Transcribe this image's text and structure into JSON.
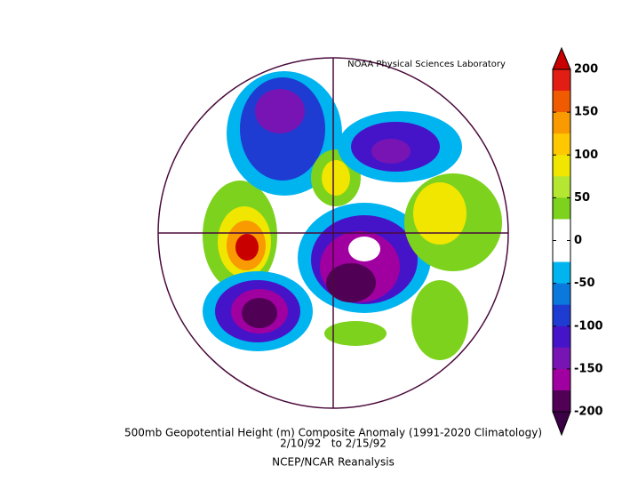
{
  "credit": "NOAA Physical Sciences Laboratory",
  "title": "500mb Geopotential Height (m) Composite Anomaly (1991-2020 Climatology)",
  "dates": "2/10/92   to 2/15/92",
  "source": "NCEP/NCAR Reanalysis",
  "colorbar": {
    "ticks": [
      200,
      150,
      100,
      50,
      0,
      -50,
      -100,
      -150,
      -200
    ],
    "over": "#c80000",
    "under": "#3c0046",
    "colors": [
      "#e21e14",
      "#f05a00",
      "#f89a00",
      "#ffc800",
      "#f0e600",
      "#b4e632",
      "#7dd21e",
      "#ffffff",
      "#ffffff",
      "#00b4f0",
      "#0a78dc",
      "#1e3cd2",
      "#4614c8",
      "#7814b4",
      "#a000a0",
      "#500055"
    ]
  }
}
